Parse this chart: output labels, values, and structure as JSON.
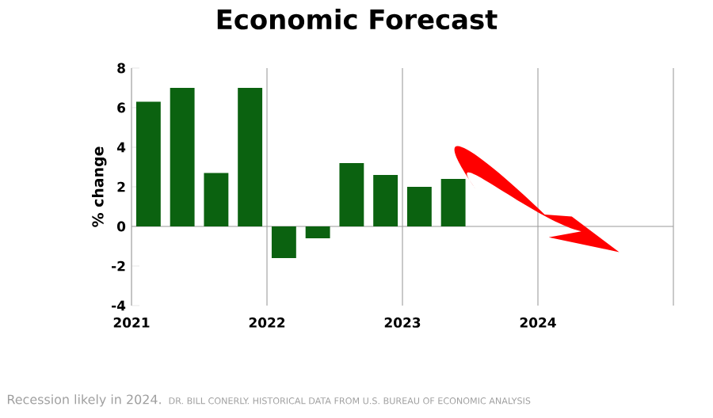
{
  "chart_data": {
    "type": "bar",
    "title": "Economic Forecast",
    "ylabel": "% change",
    "x": [
      2021.125,
      2021.375,
      2021.625,
      2021.875,
      2022.125,
      2022.375,
      2022.625,
      2022.875,
      2023.125,
      2023.375
    ],
    "values": [
      6.3,
      7.0,
      2.7,
      7.0,
      -1.6,
      -0.6,
      3.2,
      2.6,
      2.0,
      2.4
    ],
    "color": "#0b6210",
    "xlim": [
      2021,
      2025
    ],
    "xticks": [
      2021,
      2022,
      2023,
      2024,
      {
        "value": 2025,
        "label": null
      }
    ],
    "ylim": [
      -4,
      8
    ],
    "yticks": [
      -4,
      -2,
      0,
      2,
      4,
      6,
      8
    ],
    "grid": "x",
    "annotations": [
      "Recession likely in 2024.",
      "DR. BILL CONERLY. HISTORICAL DATA FROM U.S. BUREAU OF ECONOMIC ANALYSIS"
    ]
  }
}
